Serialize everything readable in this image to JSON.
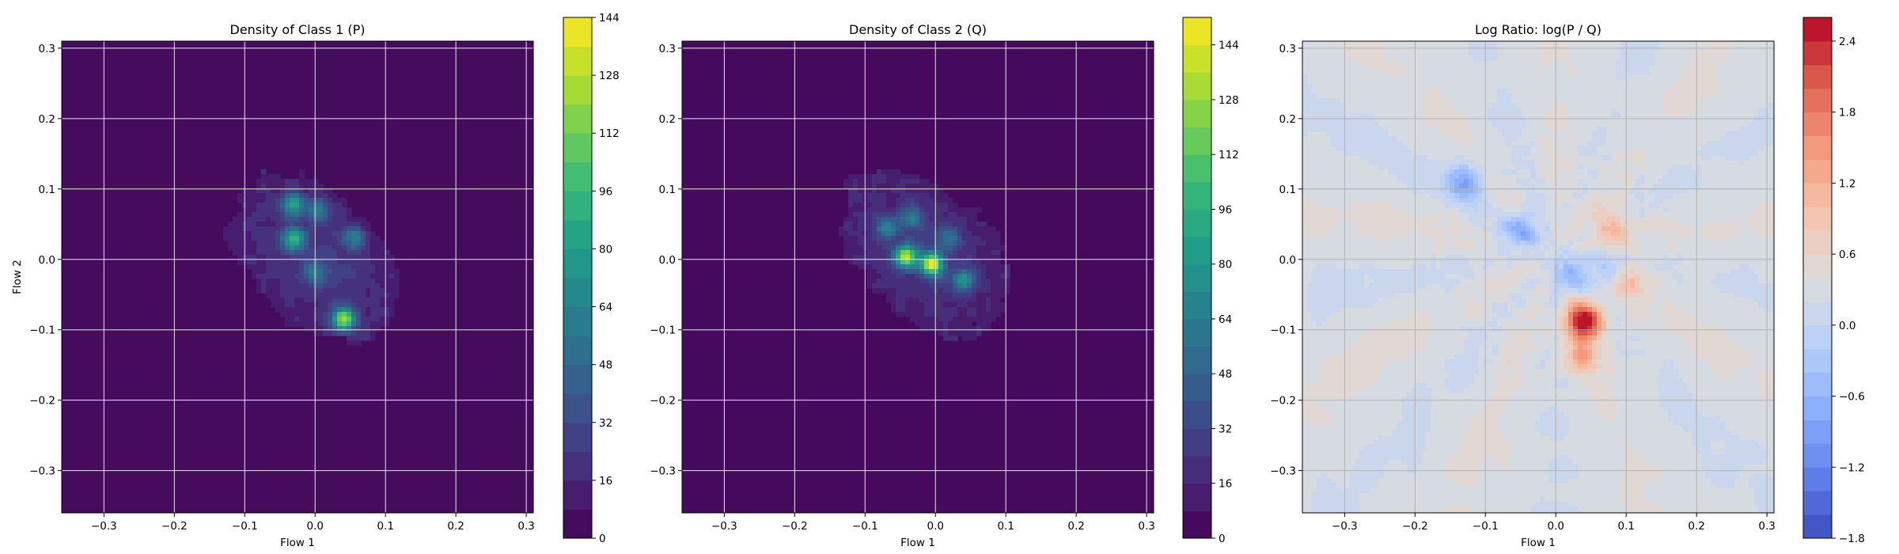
{
  "chart_data": [
    {
      "type": "heatmap",
      "subtype": "filled-contour",
      "title": "Density of Class 1 (P)",
      "xlabel": "Flow 1",
      "ylabel": "Flow 2",
      "xlim": [
        -0.36,
        0.31
      ],
      "ylim": [
        -0.36,
        0.31
      ],
      "xticks": [
        -0.3,
        -0.2,
        -0.1,
        0.0,
        0.1,
        0.2,
        0.3
      ],
      "yticks": [
        -0.3,
        -0.2,
        -0.1,
        0.0,
        0.1,
        0.2,
        0.3
      ],
      "grid": true,
      "colormap": "viridis",
      "colorbar": {
        "range": [
          0,
          144
        ],
        "ticks": [
          0,
          16,
          32,
          48,
          64,
          80,
          96,
          112,
          128,
          144
        ],
        "levels": 18
      },
      "peaks": [
        {
          "x": 0.04,
          "y": -0.085,
          "value": 110
        },
        {
          "x": -0.03,
          "y": 0.028,
          "value": 75
        },
        {
          "x": -0.03,
          "y": 0.078,
          "value": 65
        },
        {
          "x": 0.005,
          "y": 0.07,
          "value": 45
        },
        {
          "x": 0.055,
          "y": 0.03,
          "value": 45
        },
        {
          "x": 0.0,
          "y": -0.02,
          "value": 40
        }
      ]
    },
    {
      "type": "heatmap",
      "subtype": "filled-contour",
      "title": "Density of Class 2 (Q)",
      "xlabel": "Flow 1",
      "ylabel": "",
      "xlim": [
        -0.36,
        0.31
      ],
      "ylim": [
        -0.36,
        0.31
      ],
      "xticks": [
        -0.3,
        -0.2,
        -0.1,
        0.0,
        0.1,
        0.2,
        0.3
      ],
      "yticks": [
        -0.3,
        -0.2,
        -0.1,
        0.0,
        0.1,
        0.2,
        0.3
      ],
      "grid": true,
      "colormap": "viridis",
      "colorbar": {
        "range": [
          0,
          152
        ],
        "ticks": [
          0,
          16,
          32,
          48,
          64,
          80,
          96,
          112,
          128,
          144
        ],
        "levels": 19
      },
      "peaks": [
        {
          "x": -0.005,
          "y": -0.007,
          "value": 130
        },
        {
          "x": -0.042,
          "y": 0.004,
          "value": 120
        },
        {
          "x": 0.04,
          "y": -0.03,
          "value": 60
        },
        {
          "x": -0.07,
          "y": 0.045,
          "value": 50
        },
        {
          "x": -0.035,
          "y": 0.06,
          "value": 45
        },
        {
          "x": 0.02,
          "y": 0.03,
          "value": 40
        }
      ]
    },
    {
      "type": "heatmap",
      "subtype": "filled-contour",
      "title": "Log Ratio: log(P / Q)",
      "xlabel": "Flow 1",
      "ylabel": "",
      "xlim": [
        -0.36,
        0.31
      ],
      "ylim": [
        -0.36,
        0.31
      ],
      "xticks": [
        -0.3,
        -0.2,
        -0.1,
        0.0,
        0.1,
        0.2,
        0.3
      ],
      "yticks": [
        -0.3,
        -0.2,
        -0.1,
        0.0,
        0.1,
        0.2,
        0.3
      ],
      "grid": true,
      "colormap": "coolwarm",
      "background_value": 0.3,
      "colorbar": {
        "range": [
          -1.8,
          2.6
        ],
        "ticks": [
          -1.8,
          -1.2,
          -0.6,
          0.0,
          0.6,
          1.2,
          1.8,
          2.4
        ],
        "tick_labels": [
          "−1.8",
          "−1.2",
          "−0.6",
          "0.0",
          "0.6",
          "1.2",
          "1.8",
          "2.4"
        ],
        "levels": 22
      },
      "peaks": [
        {
          "x": 0.04,
          "y": -0.088,
          "value": 2.4
        },
        {
          "x": 0.035,
          "y": -0.14,
          "value": 0.9
        },
        {
          "x": 0.08,
          "y": 0.045,
          "value": 0.8
        },
        {
          "x": 0.1,
          "y": -0.03,
          "value": 0.9
        },
        {
          "x": -0.13,
          "y": 0.11,
          "value": -1.1
        },
        {
          "x": -0.05,
          "y": 0.04,
          "value": -1.0
        },
        {
          "x": 0.02,
          "y": -0.02,
          "value": -0.9
        },
        {
          "x": 0.08,
          "y": -0.02,
          "value": -0.7
        }
      ]
    }
  ]
}
